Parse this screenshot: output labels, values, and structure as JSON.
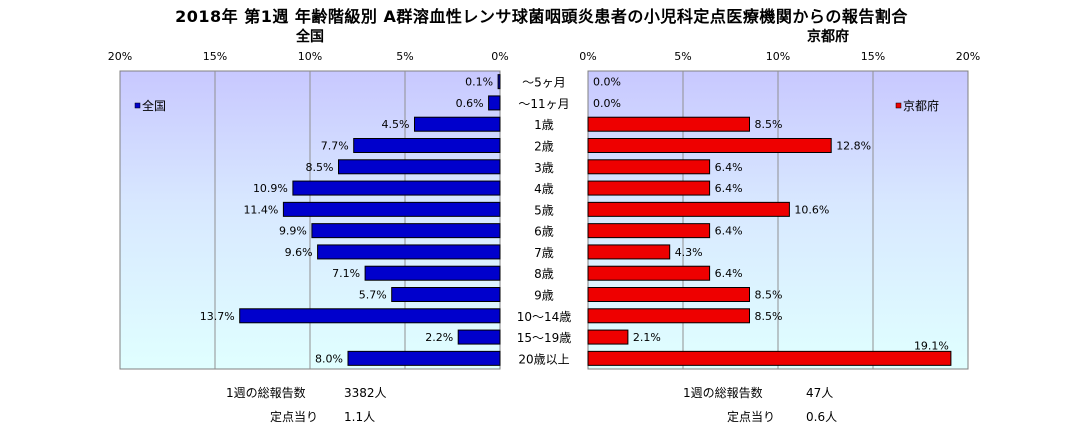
{
  "title": "2018年 第1週 年齢階級別 A群溶血性レンサ球菌咽頭炎患者の小児科定点医療機関からの報告割合",
  "chart_data": [
    {
      "type": "bar",
      "orientation": "horizontal",
      "direction": "right-to-left",
      "title": "全国",
      "legend": "全国",
      "legend_placement": "top-left",
      "color": "#0000CC",
      "categories": [
        "～5ヶ月",
        "～11ヶ月",
        "1歳",
        "2歳",
        "3歳",
        "4歳",
        "5歳",
        "6歳",
        "7歳",
        "8歳",
        "9歳",
        "10～14歳",
        "15～19歳",
        "20歳以上"
      ],
      "values": [
        0.1,
        0.6,
        4.5,
        7.7,
        8.5,
        10.9,
        11.4,
        9.9,
        9.6,
        7.1,
        5.7,
        13.7,
        2.2,
        8.0
      ],
      "value_labels": [
        "0.1%",
        "0.6%",
        "4.5%",
        "7.7%",
        "8.5%",
        "10.9%",
        "11.4%",
        "9.9%",
        "9.6%",
        "7.1%",
        "5.7%",
        "13.7%",
        "2.2%",
        "8.0%"
      ],
      "xlim": [
        0,
        20
      ],
      "ticks": [
        "20%",
        "15%",
        "10%",
        "5%",
        "0%"
      ],
      "grid": true
    },
    {
      "type": "bar",
      "orientation": "horizontal",
      "direction": "left-to-right",
      "title": "京都府",
      "legend": "京都府",
      "legend_placement": "top-right",
      "color": "#EE0000",
      "categories": [
        "～5ヶ月",
        "～11ヶ月",
        "1歳",
        "2歳",
        "3歳",
        "4歳",
        "5歳",
        "6歳",
        "7歳",
        "8歳",
        "9歳",
        "10～14歳",
        "15～19歳",
        "20歳以上"
      ],
      "values": [
        0.0,
        0.0,
        8.5,
        12.8,
        6.4,
        6.4,
        10.6,
        6.4,
        4.3,
        6.4,
        8.5,
        8.5,
        2.1,
        19.1
      ],
      "value_labels": [
        "0.0%",
        "0.0%",
        "8.5%",
        "12.8%",
        "6.4%",
        "6.4%",
        "10.6%",
        "6.4%",
        "4.3%",
        "6.4%",
        "8.5%",
        "8.5%",
        "2.1%",
        "19.1%"
      ],
      "xlim": [
        0,
        20
      ],
      "ticks": [
        "0%",
        "5%",
        "10%",
        "15%",
        "20%"
      ],
      "grid": true
    }
  ],
  "footer": {
    "national_total_label": "1週の総報告数",
    "national_total_value": "3382人",
    "national_per_label": "定点当り",
    "national_per_value": "1.1人",
    "kyoto_total_label": "1週の総報告数",
    "kyoto_total_value": "47人",
    "kyoto_per_label": "定点当り",
    "kyoto_per_value": "0.6人"
  }
}
